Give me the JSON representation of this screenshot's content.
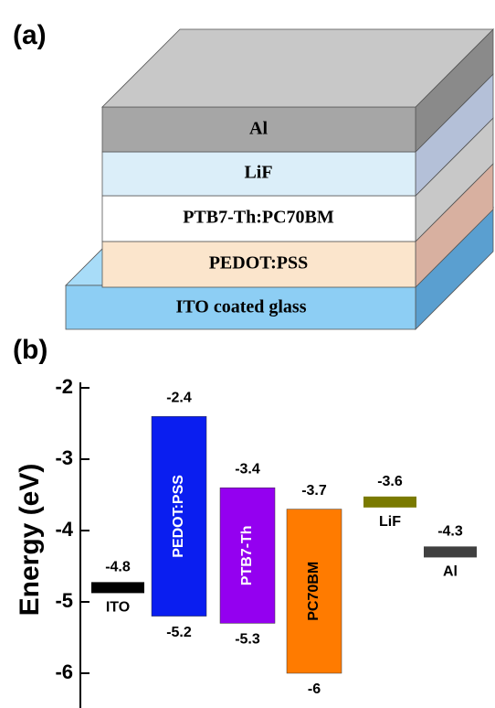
{
  "panel_a": {
    "label": "(a)",
    "layers": [
      "Al",
      "LiF",
      "PTB7-Th:PC70BM",
      "PEDOT:PSS",
      "ITO coated glass"
    ]
  },
  "chart_data": {
    "type": "energy_levels",
    "panel_label": "(b)",
    "y_label": "Energy (eV)",
    "ylim": [
      -6.5,
      -2
    ],
    "yticks": [
      -2,
      -3,
      -4,
      -5,
      -6
    ],
    "series": [
      {
        "name": "ITO",
        "color": "#000000",
        "values": [
          -4.8
        ]
      },
      {
        "name": "PEDOT:PSS",
        "color": "#0a1ef0",
        "values": [
          -2.4,
          -5.2
        ]
      },
      {
        "name": "PTB7-Th",
        "color": "#9400f0",
        "values": [
          -3.4,
          -5.3
        ]
      },
      {
        "name": "PC70BM",
        "color": "#ff7b00",
        "values": [
          -3.7,
          -6.0
        ]
      },
      {
        "name": "LiF",
        "color": "#7a7a00",
        "values": [
          -3.6
        ]
      },
      {
        "name": "Al",
        "color": "#404040",
        "values": [
          -4.3
        ]
      }
    ]
  }
}
